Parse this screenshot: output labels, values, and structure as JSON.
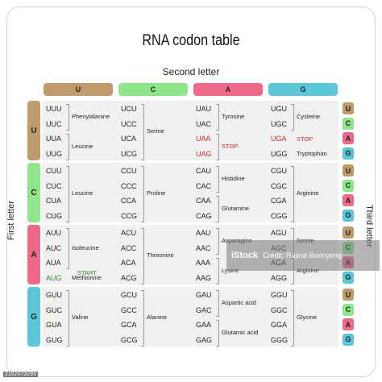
{
  "title": "RNA codon table",
  "second_letter_label": "Second letter",
  "first_letter_label": "First letter",
  "third_letter_label": "Third letter",
  "colors": {
    "U": "#c19a6b",
    "C": "#8fe68a",
    "A": "#ef6a8a",
    "G": "#5bc6d8"
  },
  "columns": [
    "U",
    "C",
    "A",
    "G"
  ],
  "rows": [
    "U",
    "C",
    "A",
    "G"
  ],
  "third_letters": [
    "U",
    "C",
    "A",
    "G"
  ],
  "blocks": [
    {
      "first": "U",
      "cols": [
        {
          "codons": [
            "UUU",
            "UUC",
            "UUA",
            "UUG"
          ],
          "aa": [
            {
              "label": "Phenylalanine",
              "from": 0,
              "to": 1
            },
            {
              "label": "Leucine",
              "from": 2,
              "to": 3
            }
          ]
        },
        {
          "codons": [
            "UCU",
            "UCC",
            "UCA",
            "UCG"
          ],
          "aa": [
            {
              "label": "Serine",
              "from": 0,
              "to": 3
            }
          ]
        },
        {
          "codons": [
            "UAU",
            "UAC",
            "UAA",
            "UAG"
          ],
          "red": [
            2,
            3
          ],
          "aa": [
            {
              "label": "Tyrosine",
              "from": 0,
              "to": 1
            },
            {
              "label": "STOP",
              "from": 2,
              "to": 3,
              "style": "red"
            }
          ]
        },
        {
          "codons": [
            "UGU",
            "UGC",
            "UGA",
            "UGG"
          ],
          "red": [
            2
          ],
          "aa": [
            {
              "label": "Cysteine",
              "from": 0,
              "to": 1
            },
            {
              "label": "STOP",
              "from": 2,
              "to": 2,
              "style": "red",
              "nobrace": true
            },
            {
              "label": "Tryptophan",
              "from": 3,
              "to": 3,
              "nobrace": true
            }
          ]
        }
      ]
    },
    {
      "first": "C",
      "cols": [
        {
          "codons": [
            "CUU",
            "CUC",
            "CUA",
            "CUG"
          ],
          "aa": [
            {
              "label": "Leucine",
              "from": 0,
              "to": 3
            }
          ]
        },
        {
          "codons": [
            "CCU",
            "CCC",
            "CCA",
            "CCG"
          ],
          "aa": [
            {
              "label": "Proline",
              "from": 0,
              "to": 3
            }
          ]
        },
        {
          "codons": [
            "CAU",
            "CAC",
            "CAA",
            "CAG"
          ],
          "aa": [
            {
              "label": "Histidine",
              "from": 0,
              "to": 1
            },
            {
              "label": "Glutamine",
              "from": 2,
              "to": 3
            }
          ]
        },
        {
          "codons": [
            "CGU",
            "CGC",
            "CGA",
            "CGG"
          ],
          "aa": [
            {
              "label": "Arginine",
              "from": 0,
              "to": 3
            }
          ]
        }
      ]
    },
    {
      "first": "A",
      "cols": [
        {
          "codons": [
            "AUU",
            "AUC",
            "AUA",
            "AUG"
          ],
          "green": [
            3
          ],
          "aa": [
            {
              "label": "Isoleucine",
              "from": 0,
              "to": 2
            },
            {
              "label": "START",
              "from": 3,
              "to": 3,
              "style": "green",
              "nobrace": true,
              "above": true
            },
            {
              "label": "Methionine",
              "from": 3,
              "to": 3,
              "nobrace": true
            }
          ]
        },
        {
          "codons": [
            "ACU",
            "ACC",
            "ACA",
            "ACG"
          ],
          "aa": [
            {
              "label": "Threonine",
              "from": 0,
              "to": 3
            }
          ]
        },
        {
          "codons": [
            "AAU",
            "AAC",
            "AAA",
            "AAG"
          ],
          "aa": [
            {
              "label": "Asparagine",
              "from": 0,
              "to": 1
            },
            {
              "label": "Lysine",
              "from": 2,
              "to": 3
            }
          ]
        },
        {
          "codons": [
            "AGU",
            "AGC",
            "AGA",
            "AGG"
          ],
          "aa": [
            {
              "label": "Serine",
              "from": 0,
              "to": 1
            },
            {
              "label": "Arginine",
              "from": 2,
              "to": 3
            }
          ]
        }
      ]
    },
    {
      "first": "G",
      "cols": [
        {
          "codons": [
            "GUU",
            "GUC",
            "GUA",
            "GUG"
          ],
          "aa": [
            {
              "label": "Valine",
              "from": 0,
              "to": 3
            }
          ]
        },
        {
          "codons": [
            "GCU",
            "GCC",
            "GCA",
            "GCG"
          ],
          "aa": [
            {
              "label": "Alanine",
              "from": 0,
              "to": 3
            }
          ]
        },
        {
          "codons": [
            "GAU",
            "GAC",
            "GAA",
            "GAG"
          ],
          "aa": [
            {
              "label": "Aspartic acid",
              "from": 0,
              "to": 1
            },
            {
              "label": "Glutamic acid",
              "from": 2,
              "to": 3
            }
          ]
        },
        {
          "codons": [
            "GGU",
            "GGC",
            "GGA",
            "GGG"
          ],
          "aa": [
            {
              "label": "Glycine",
              "from": 0,
              "to": 3
            }
          ]
        }
      ]
    }
  ],
  "watermark": {
    "logo": "iStock",
    "credit": "Credit: Rujirat Boonyong"
  },
  "stock_id": "2162073293"
}
